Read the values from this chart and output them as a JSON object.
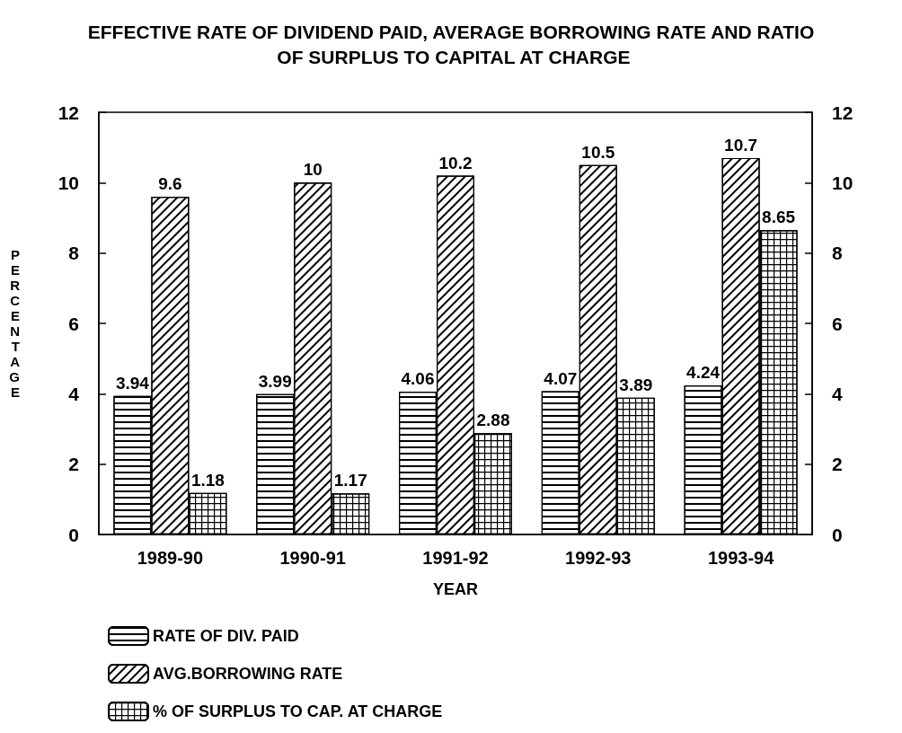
{
  "chart_data": {
    "type": "bar",
    "title": "EFFECTIVE RATE OF DIVIDEND PAID, AVERAGE BORROWING RATE AND RATIO OF SURPLUS TO CAPITAL AT CHARGE",
    "xlabel": "YEAR",
    "ylabel": "PERCENTAGE",
    "categories": [
      "1989-90",
      "1990-91",
      "1991-92",
      "1992-93",
      "1993-94"
    ],
    "series": [
      {
        "name": "RATE OF DIV. PAID",
        "color": "#ffffff",
        "values": [
          3.94,
          3.99,
          4.06,
          4.07,
          4.24
        ]
      },
      {
        "name": "AVG.BORROWING RATE",
        "color": "#ffffff",
        "values": [
          9.6,
          10,
          10.2,
          10.5,
          10.7
        ]
      },
      {
        "name": "% OF SURPLUS TO CAP. AT CHARGE",
        "color": "#ffffff",
        "values": [
          1.18,
          1.17,
          2.88,
          3.89,
          8.65
        ]
      }
    ],
    "ylim": [
      0,
      12
    ],
    "yticks": [
      0,
      2,
      4,
      6,
      8,
      10,
      12
    ],
    "y2lim": [
      0,
      12
    ],
    "y2ticks": [
      0,
      2,
      4,
      6,
      8,
      10,
      12
    ],
    "data_labels": true,
    "grid": false,
    "legend": "bottom left"
  }
}
